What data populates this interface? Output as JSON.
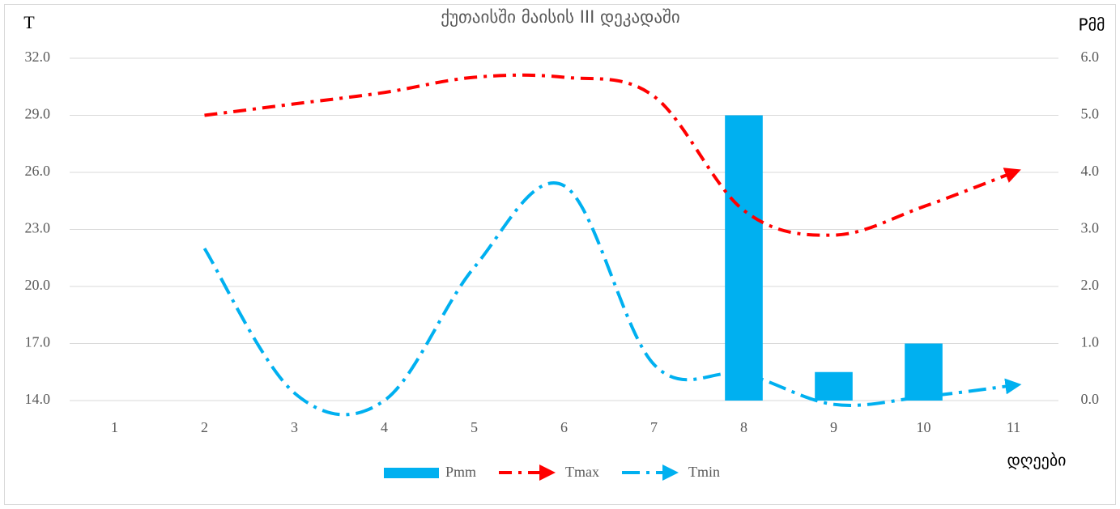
{
  "chart_data": {
    "type": "combo",
    "title": "ქუთაისში მაისის III დეკადაში",
    "y_label": "T",
    "y2_label": "Pმმ",
    "x_label": "დღეები",
    "categories": [
      "1",
      "2",
      "3",
      "4",
      "5",
      "6",
      "7",
      "8",
      "9",
      "10",
      "11"
    ],
    "series": [
      {
        "name": "Pmm",
        "type": "bar",
        "axis": "y2",
        "color": "#00b0f0",
        "values": [
          null,
          null,
          null,
          null,
          null,
          null,
          null,
          5.0,
          0.5,
          1.0,
          null
        ]
      },
      {
        "name": "Tmax",
        "type": "line",
        "color": "#ff0000",
        "values": [
          null,
          29.0,
          29.6,
          30.2,
          31.0,
          31.0,
          30.0,
          24.0,
          22.7,
          24.2,
          26.0
        ]
      },
      {
        "name": "Tmin",
        "type": "line",
        "color": "#00b0f0",
        "values": [
          null,
          22.0,
          14.4,
          14.0,
          21.0,
          25.3,
          15.9,
          15.4,
          13.8,
          14.2,
          14.8
        ]
      }
    ],
    "ylim": [
      14,
      32
    ],
    "yticks": [
      {
        "value": 14,
        "label": "14.0"
      },
      {
        "value": 17,
        "label": "17.0"
      },
      {
        "value": 20,
        "label": "20.0"
      },
      {
        "value": 23,
        "label": "23.0"
      },
      {
        "value": 26,
        "label": "26.0"
      },
      {
        "value": 29,
        "label": "29.0"
      },
      {
        "value": 32,
        "label": "32.0"
      }
    ],
    "y2lim": [
      0,
      6
    ],
    "y2ticks": [
      {
        "value": 0,
        "label": "0.0"
      },
      {
        "value": 1,
        "label": "1.0"
      },
      {
        "value": 2,
        "label": "2.0"
      },
      {
        "value": 3,
        "label": "3.0"
      },
      {
        "value": 4,
        "label": "4.0"
      },
      {
        "value": 5,
        "label": "5.0"
      },
      {
        "value": 6,
        "label": "6.0"
      }
    ],
    "grid": true,
    "legend": "bottom"
  }
}
